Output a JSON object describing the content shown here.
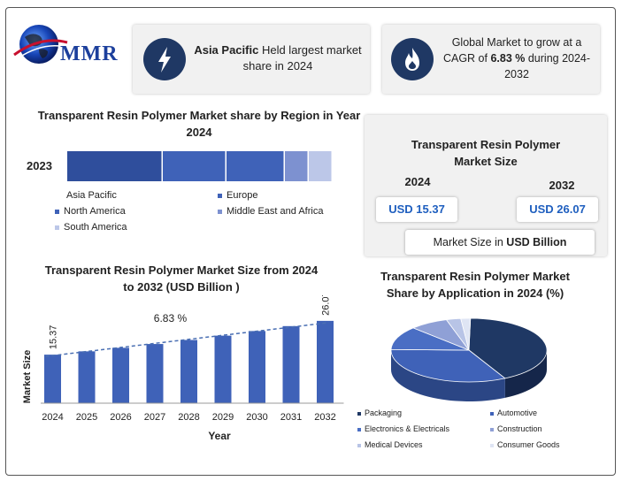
{
  "logo": {
    "text": "MMR"
  },
  "highlight_left": {
    "bold": "Asia Pacific",
    "rest": "Held largest market share in 2024",
    "icon": "lightning-icon"
  },
  "highlight_right": {
    "line1": "Global Market to grow at a",
    "line2_pre": "CAGR of ",
    "line2_bold": "6.83 %",
    "line2_post": " during 2024-",
    "line3": "2032",
    "icon": "fire-icon"
  },
  "market_size_card": {
    "title": "Transparent Resin Polymer Market Size",
    "year_a": "2024",
    "value_a": "USD 15.37",
    "year_b": "2032",
    "value_b": "USD 26.07",
    "note_pre": "Market Size in ",
    "note_bold": "USD Billion"
  },
  "colors": {
    "dark_blue": "#2f4e9c",
    "mid_blue": "#3f62b8",
    "light_blue": "#7d91d0",
    "pale_blue": "#bcc7e8",
    "navy": "#1f3864"
  },
  "chart_data": [
    {
      "type": "bar",
      "orientation": "horizontal-stacked",
      "title": "Transparent Resin Polymer Market share by Region in Year 2024",
      "categories": [
        "2023"
      ],
      "series": [
        {
          "name": "Asia Pacific",
          "values": [
            36
          ]
        },
        {
          "name": "Europe",
          "values": [
            24
          ]
        },
        {
          "name": "North America",
          "values": [
            22
          ]
        },
        {
          "name": "Middle East and Africa",
          "values": [
            9
          ]
        },
        {
          "name": "South America",
          "values": [
            9
          ]
        }
      ],
      "legend": "bottom"
    },
    {
      "type": "bar",
      "title": "Transparent Resin Polymer Market Size from 2024 to 2032 (USD  Billion )",
      "xlabel": "Year",
      "ylabel": "Market Size",
      "categories": [
        "2024",
        "2025",
        "2026",
        "2027",
        "2028",
        "2029",
        "2030",
        "2031",
        "2032"
      ],
      "values": [
        15.37,
        16.42,
        17.54,
        18.74,
        20.02,
        21.39,
        22.85,
        24.41,
        26.07
      ],
      "data_labels": {
        "2024": "15.37",
        "2032": "26.07"
      },
      "annotation": "6.83 %",
      "ylim": [
        0,
        28
      ],
      "trendline": true
    },
    {
      "type": "pie",
      "style": "3d",
      "title": "Transparent Resin Polymer  Market Share by Application in  2024 (%)",
      "labels": [
        "Packaging",
        "Automotive",
        "Electronics & Electricals",
        "Construction",
        "Medical Devices",
        "Consumer Goods"
      ],
      "values": [
        42,
        33,
        12,
        8,
        3,
        2
      ],
      "legend": "bottom"
    }
  ]
}
